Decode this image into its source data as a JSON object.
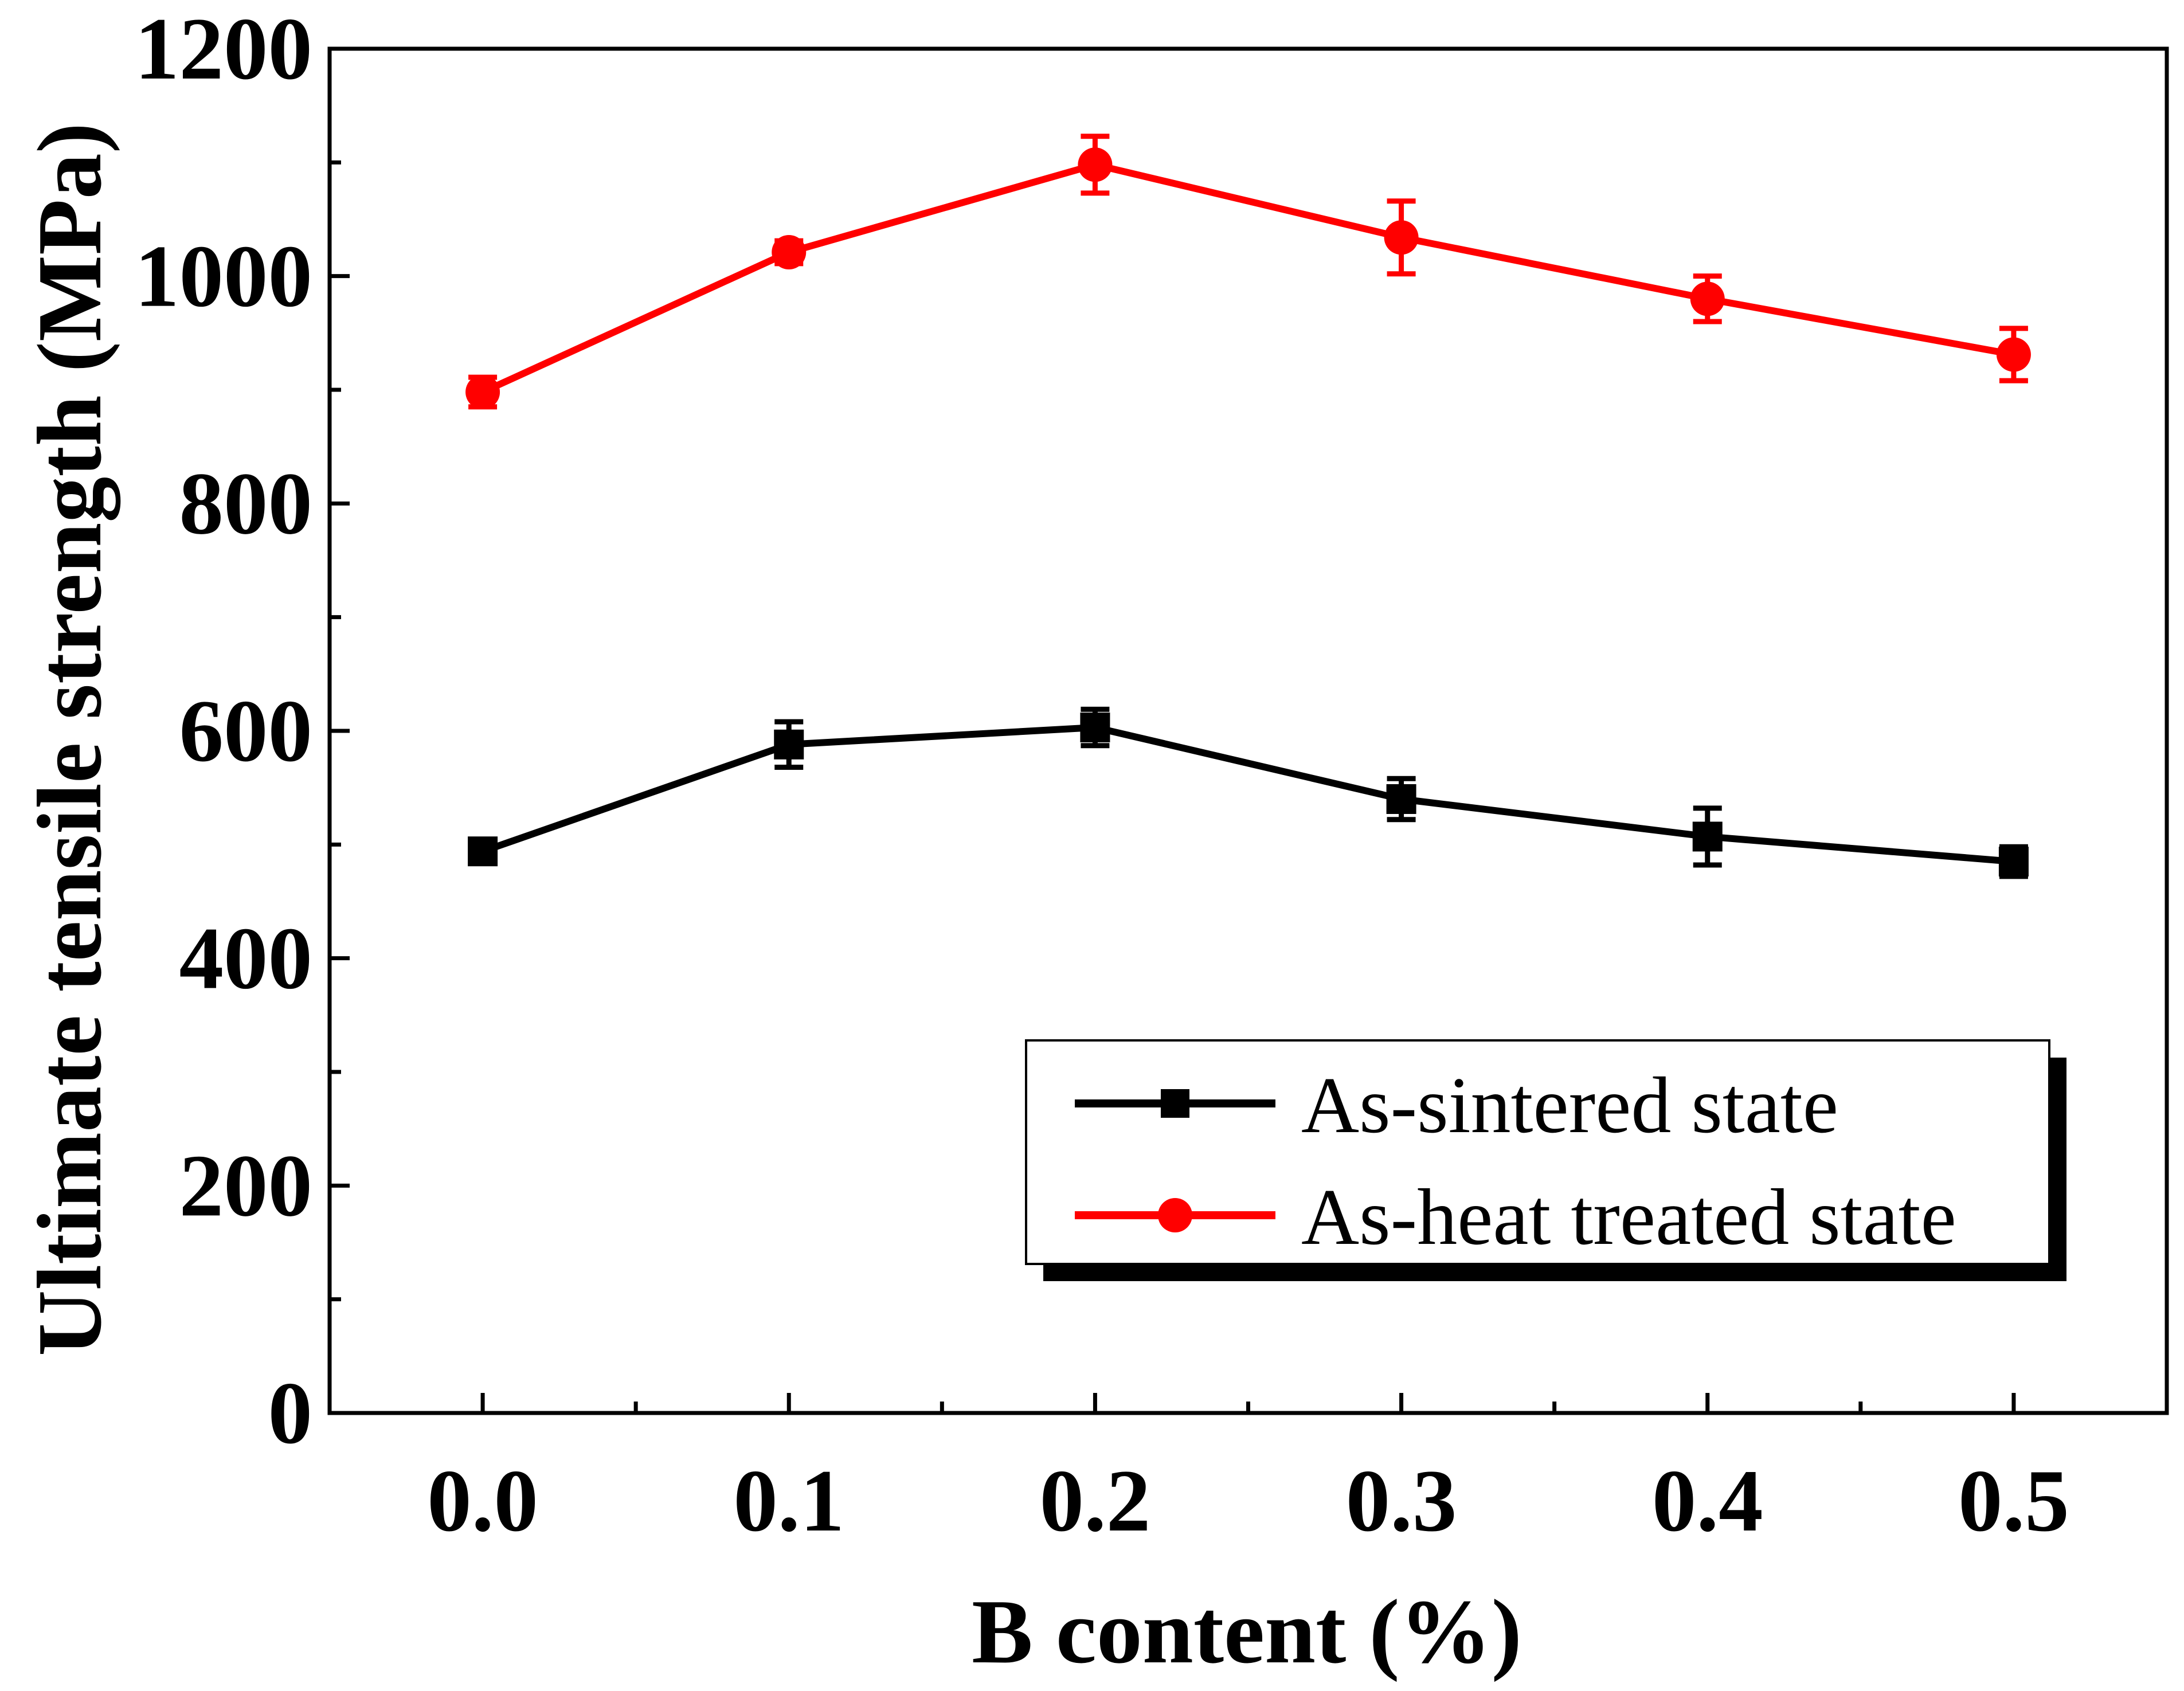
{
  "chart_data": {
    "type": "line",
    "title": "",
    "xlabel": "B content (%)",
    "ylabel": "Ultimate tensile strength (MPa)",
    "xlim": [
      -0.05,
      0.55
    ],
    "ylim": [
      0,
      1200
    ],
    "x": [
      0.0,
      0.1,
      0.2,
      0.3,
      0.4,
      0.5
    ],
    "x_tick_labels": [
      "0.0",
      "0.1",
      "0.2",
      "0.3",
      "0.4",
      "0.5"
    ],
    "y_ticks": [
      0,
      200,
      400,
      600,
      800,
      1000,
      1200
    ],
    "y_tick_labels": [
      "0",
      "200",
      "400",
      "600",
      "800",
      "1000",
      "1200"
    ],
    "grid": false,
    "legend_position": "bottom-right",
    "series": [
      {
        "name": "As-sintered state",
        "color": "#000000",
        "marker": "square",
        "values": [
          494,
          588,
          603,
          540,
          507,
          485
        ],
        "errors": [
          8,
          20,
          16,
          18,
          25,
          13
        ]
      },
      {
        "name": "As-heat treated state",
        "color": "#ff0000",
        "marker": "circle",
        "values": [
          898,
          1021,
          1098,
          1034,
          980,
          931
        ],
        "errors": [
          13,
          10,
          25,
          32,
          20,
          23
        ]
      }
    ]
  }
}
